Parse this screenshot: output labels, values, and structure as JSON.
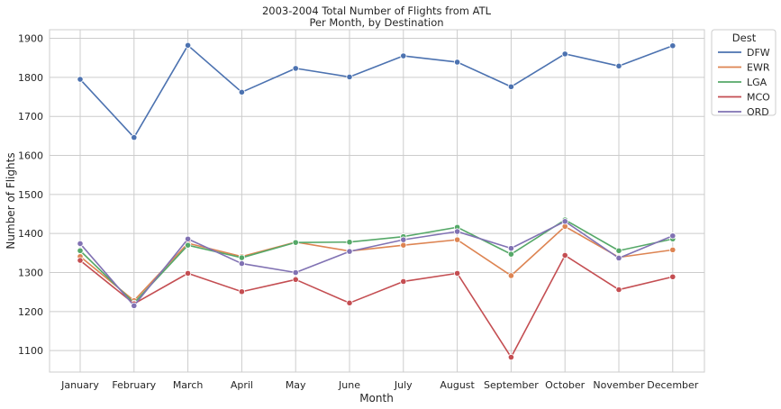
{
  "chart_data": {
    "type": "line",
    "title": "2003-2004 Total Number of Flights from ATL",
    "subtitle": "Per Month, by Destination",
    "xlabel": "Month",
    "ylabel": "Number of Flights",
    "categories": [
      "January",
      "February",
      "March",
      "April",
      "May",
      "June",
      "July",
      "August",
      "September",
      "October",
      "November",
      "December"
    ],
    "ylim": [
      1045,
      1922
    ],
    "yticks": [
      1100,
      1200,
      1300,
      1400,
      1500,
      1600,
      1700,
      1800,
      1900
    ],
    "grid": true,
    "legend": {
      "title": "Dest",
      "placement": "outside-top-right"
    },
    "series": [
      {
        "name": "DFW",
        "color": "#4c72b0",
        "values": [
          1795,
          1646,
          1882,
          1762,
          1823,
          1801,
          1855,
          1839,
          1776,
          1860,
          1829,
          1881
        ]
      },
      {
        "name": "EWR",
        "color": "#dd8452",
        "values": [
          1341,
          1228,
          1375,
          1341,
          1378,
          1355,
          1370,
          1384,
          1292,
          1418,
          1339,
          1358
        ]
      },
      {
        "name": "LGA",
        "color": "#55a868",
        "values": [
          1356,
          1222,
          1370,
          1338,
          1377,
          1378,
          1392,
          1416,
          1347,
          1435,
          1356,
          1386
        ]
      },
      {
        "name": "MCO",
        "color": "#c44e52",
        "values": [
          1331,
          1220,
          1298,
          1251,
          1282,
          1222,
          1277,
          1298,
          1083,
          1344,
          1256,
          1289
        ]
      },
      {
        "name": "ORD",
        "color": "#8172b3",
        "values": [
          1374,
          1215,
          1386,
          1323,
          1300,
          1354,
          1384,
          1405,
          1362,
          1431,
          1337,
          1394
        ]
      }
    ]
  }
}
